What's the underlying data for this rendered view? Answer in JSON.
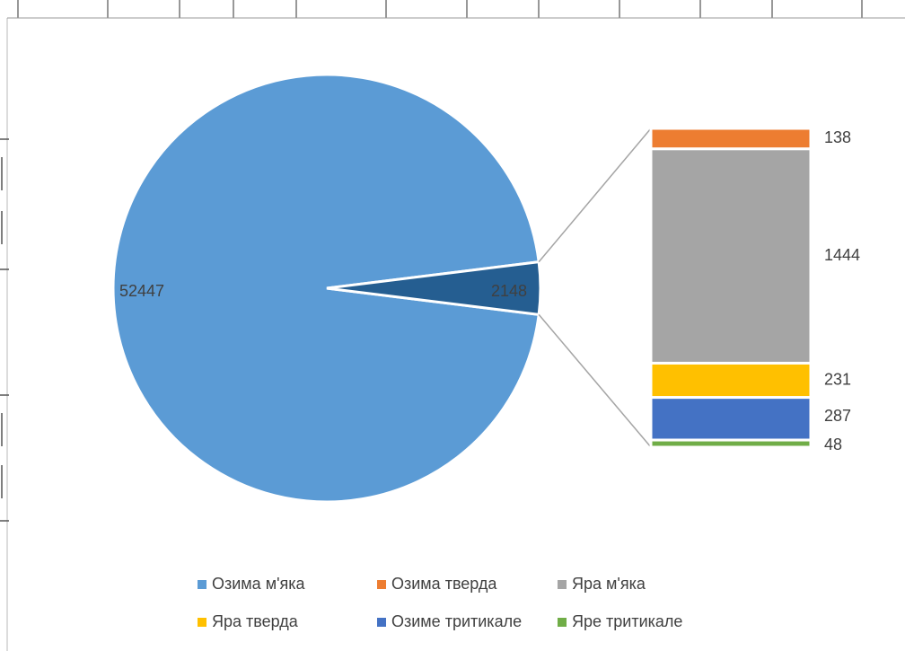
{
  "chart_data": {
    "type": "pie-of-bar",
    "categories": [
      "Озима м'яка",
      "Озима тверда",
      "Яра м'яка",
      "Яра тверда",
      "Озиме тритикале",
      "Яре тритикале"
    ],
    "values": [
      52447,
      138,
      1444,
      231,
      287,
      48
    ],
    "colors": [
      "#5b9bd5",
      "#ed7d31",
      "#a5a5a5",
      "#ffc000",
      "#4472c4",
      "#70ad47"
    ],
    "secondary_total": 2148,
    "secondary_color": "#255e91"
  }
}
